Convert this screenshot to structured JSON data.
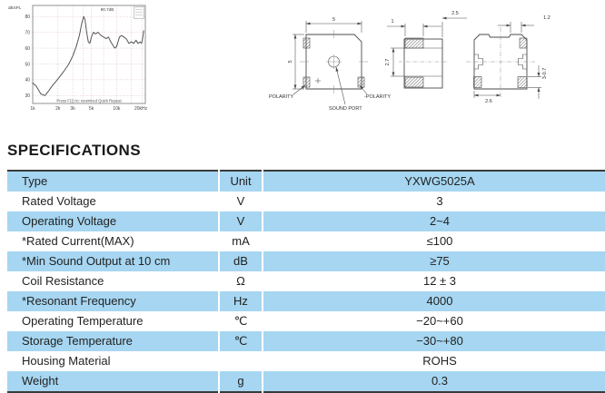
{
  "chart_data": {
    "type": "line",
    "ylabel": "dBSPL",
    "annotation": "90.7dB",
    "caption": "Press F(1) to: examined Quick Repeat",
    "x_tick_values": [
      1000,
      2000,
      3000,
      5000,
      10000,
      20000
    ],
    "x_tick_labels": [
      "1k",
      "2k",
      "3k",
      "5k",
      "10k",
      "20kHz"
    ],
    "y_ticks": [
      30,
      40,
      50,
      60,
      70,
      80
    ],
    "ylim": [
      25,
      87
    ],
    "xlim": [
      1000,
      22000
    ],
    "grid_freqs": [
      2000,
      3000,
      4000,
      5000,
      7000,
      10000,
      15000,
      20000
    ],
    "x": [
      1000,
      1100,
      1250,
      1400,
      1550,
      1700,
      1900,
      2100,
      2400,
      2700,
      3000,
      3300,
      3600,
      3850,
      4050,
      4200,
      4400,
      4600,
      4800,
      5000,
      5300,
      5600,
      6000,
      6500,
      7000,
      7500,
      8000,
      8500,
      9000,
      9500,
      10000,
      10400,
      10800,
      11500,
      12200,
      13000,
      14000,
      15000,
      16000,
      17000,
      18000,
      19000,
      19800,
      20400,
      21000
    ],
    "y": [
      38,
      36,
      31,
      30,
      33,
      36,
      39,
      42,
      46,
      50,
      55,
      61,
      68,
      76,
      80,
      78,
      70,
      64,
      63,
      67,
      70,
      69,
      70,
      68,
      67,
      66,
      67,
      64,
      62,
      60,
      61,
      64,
      67,
      68,
      67,
      66,
      63,
      64,
      63,
      65,
      63,
      64,
      63,
      66,
      71
    ]
  },
  "drawings": {
    "front_view": {
      "width_dim": "5",
      "height_dim": "5",
      "polarity_left": "POLARITY",
      "polarity_right": "-POLARITY",
      "sound_port_label": "SOUND PORT"
    },
    "side_view": {
      "pad_width_dim": "1",
      "body_width_dim": "2.5",
      "inner_height_dim": "2.7"
    },
    "bottom_view": {
      "tab_dim": "1.2",
      "bottom_dim": "2.6",
      "pad_height_dim": "3-0.7"
    }
  },
  "specifications": {
    "heading": "SPECIFICATIONS",
    "table": {
      "rows": [
        {
          "label": "Type",
          "unit": "Unit",
          "value": "YXWG5025A"
        },
        {
          "label": "Rated Voltage",
          "unit": "V",
          "value": "3"
        },
        {
          "label": "Operating Voltage",
          "unit": "V",
          "value": "2~4"
        },
        {
          "label": "*Rated Current(MAX)",
          "unit": "mA",
          "value": "≤100"
        },
        {
          "label": "*Min Sound Output at 10 cm",
          "unit": "dB",
          "value": "≥75"
        },
        {
          "label": "Coil Resistance",
          "unit": "Ω",
          "value": "12 ± 3"
        },
        {
          "label": "*Resonant Frequency",
          "unit": "Hz",
          "value": "4000"
        },
        {
          "label": "Operating Temperature",
          "unit": "℃",
          "value": "−20~+60"
        },
        {
          "label": "Storage Temperature",
          "unit": "℃",
          "value": "−30~+80"
        },
        {
          "label": "Housing Material",
          "unit": "",
          "value": "ROHS"
        },
        {
          "label": "Weight",
          "unit": "g",
          "value": "0.3"
        }
      ]
    },
    "colors": {
      "row_highlight": "#a6d6f1",
      "border": "#3a3a3a",
      "text": "#222222"
    }
  }
}
